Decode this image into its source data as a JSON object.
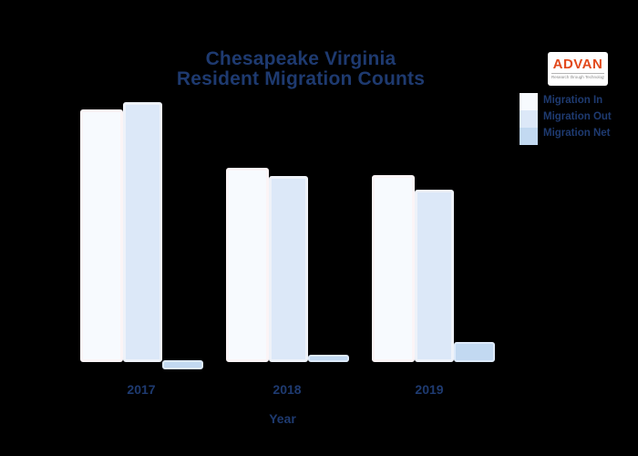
{
  "page": {
    "background": "#000000",
    "text_color": "#1e3a70"
  },
  "title": {
    "line1": "Chesapeake Virginia",
    "line2": "Resident Migration Counts",
    "color": "#1e3a70"
  },
  "logo": {
    "text": "ADVAN",
    "tagline": "Research through Technology",
    "text_color": "#e2491c",
    "background": "#ffffff"
  },
  "legend": {
    "position": "top-right",
    "items": [
      {
        "label": "Migration In",
        "color": "#f7fafe"
      },
      {
        "label": "Migration Out",
        "color": "#dce8f8"
      },
      {
        "label": "Migration Net",
        "color": "#c2d9f1"
      }
    ]
  },
  "x_axis": {
    "title": "Year",
    "ticks": [
      "2017",
      "2018",
      "2019"
    ]
  },
  "chart_data": {
    "type": "bar",
    "title": "Chesapeake Virginia Resident Migration Counts",
    "xlabel": "Year",
    "ylabel": "",
    "categories": [
      "2017",
      "2018",
      "2019"
    ],
    "note": "No numeric y-axis or gridlines are shown; values are estimated relative bar heights (pixels above/below the baseline).",
    "unit": "relative (unlabeled axis)",
    "legend_position": "top-right",
    "grid": false,
    "series": [
      {
        "name": "Migration In",
        "values": [
          277,
          213,
          205
        ],
        "color": "#f7fafe",
        "border": "#fbf4f6"
      },
      {
        "name": "Migration Out",
        "values": [
          285,
          204,
          189
        ],
        "color": "#dce8f8",
        "border": "#eef2f9"
      },
      {
        "name": "Migration Net",
        "values": [
          -10,
          8,
          22
        ],
        "color": "#c2d9f1",
        "border": "#ddeafa"
      }
    ]
  }
}
